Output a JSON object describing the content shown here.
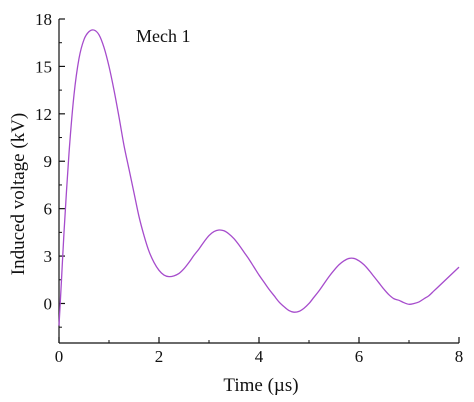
{
  "chart_data": {
    "type": "line",
    "title": "",
    "xlabel": "Time  (µs)",
    "ylabel": "Induced voltage  (kV)",
    "xlim": [
      0,
      8
    ],
    "ylim": [
      -2.5,
      18
    ],
    "xticks": [
      0,
      2,
      4,
      6,
      8
    ],
    "xtick_labels": [
      "0",
      "2",
      "4",
      "6",
      "8"
    ],
    "yticks": [
      0,
      3,
      6,
      9,
      12,
      15,
      18
    ],
    "ytick_labels": [
      "0",
      "3",
      "6",
      "9",
      "12",
      "15",
      "18"
    ],
    "grid": false,
    "annotation": "Mech 1",
    "series_color": "#a64ccc",
    "series": [
      {
        "name": "",
        "x": [
          0.0,
          0.05,
          0.1,
          0.2,
          0.3,
          0.4,
          0.5,
          0.6,
          0.7,
          0.8,
          0.9,
          1.0,
          1.1,
          1.2,
          1.3,
          1.4,
          1.5,
          1.6,
          1.7,
          1.8,
          1.9,
          2.0,
          2.1,
          2.2,
          2.3,
          2.4,
          2.5,
          2.6,
          2.7,
          2.8,
          2.9,
          3.0,
          3.1,
          3.2,
          3.3,
          3.4,
          3.5,
          3.6,
          3.7,
          3.8,
          3.9,
          4.0,
          4.1,
          4.2,
          4.3,
          4.4,
          4.5,
          4.6,
          4.7,
          4.8,
          4.9,
          5.0,
          5.1,
          5.2,
          5.3,
          5.4,
          5.5,
          5.6,
          5.7,
          5.8,
          5.9,
          6.0,
          6.1,
          6.2,
          6.3,
          6.4,
          6.5,
          6.6,
          6.7,
          6.8,
          6.9,
          7.0,
          7.1,
          7.2,
          7.3,
          7.4,
          7.5,
          7.6,
          7.7,
          7.8,
          7.9,
          8.0
        ],
        "values": [
          -1.4,
          1.5,
          4.5,
          9.5,
          13.2,
          15.5,
          16.7,
          17.2,
          17.3,
          17.0,
          16.2,
          15.0,
          13.5,
          11.8,
          10.0,
          8.5,
          7.0,
          5.5,
          4.3,
          3.3,
          2.6,
          2.1,
          1.8,
          1.7,
          1.75,
          1.9,
          2.2,
          2.6,
          3.05,
          3.45,
          3.9,
          4.3,
          4.55,
          4.65,
          4.6,
          4.4,
          4.1,
          3.7,
          3.25,
          2.8,
          2.3,
          1.8,
          1.35,
          0.9,
          0.5,
          0.1,
          -0.2,
          -0.45,
          -0.55,
          -0.5,
          -0.3,
          0.0,
          0.4,
          0.8,
          1.25,
          1.7,
          2.1,
          2.45,
          2.7,
          2.85,
          2.85,
          2.7,
          2.45,
          2.1,
          1.7,
          1.3,
          0.9,
          0.55,
          0.3,
          0.2,
          0.05,
          -0.05,
          0.0,
          0.1,
          0.3,
          0.5,
          0.8,
          1.1,
          1.4,
          1.7,
          2.0,
          2.3
        ]
      }
    ]
  }
}
